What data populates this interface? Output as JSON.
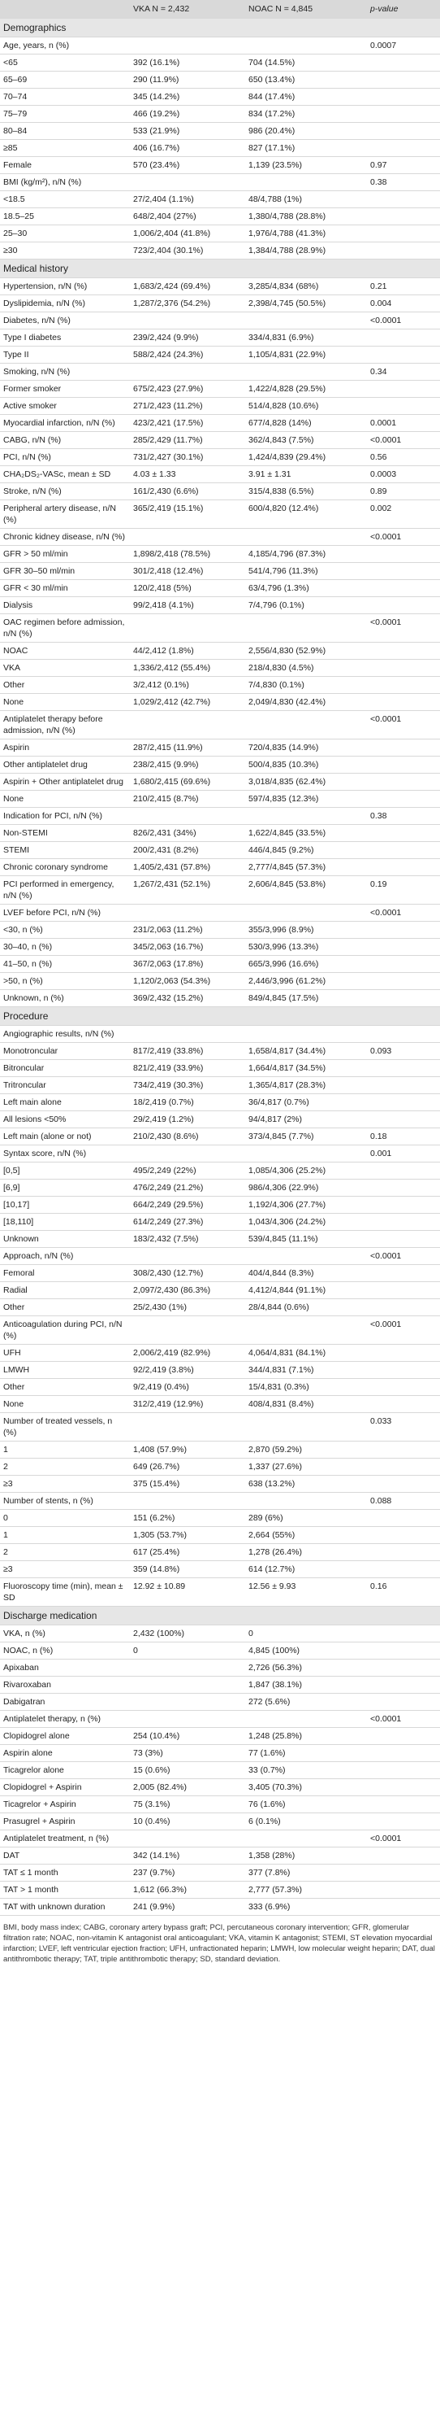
{
  "table": {
    "header": [
      null,
      "VKA N = 2,432",
      "NOAC N = 4,845",
      "p-value"
    ],
    "sections": [
      {
        "title": "Demographics",
        "rows": [
          [
            "Age, years, n (%)",
            null,
            null,
            "0.0007"
          ],
          [
            "<65",
            "392 (16.1%)",
            "704 (14.5%)",
            null
          ],
          [
            "65–69",
            "290 (11.9%)",
            "650 (13.4%)",
            null
          ],
          [
            "70–74",
            "345 (14.2%)",
            "844 (17.4%)",
            null
          ],
          [
            "75–79",
            "466 (19.2%)",
            "834 (17.2%)",
            null
          ],
          [
            "80–84",
            "533 (21.9%)",
            "986 (20.4%)",
            null
          ],
          [
            "≥85",
            "406 (16.7%)",
            "827 (17.1%)",
            null
          ],
          [
            "Female",
            "570 (23.4%)",
            "1,139 (23.5%)",
            "0.97"
          ],
          [
            "BMI (kg/m²), n/N (%)",
            null,
            null,
            "0.38"
          ],
          [
            "<18.5",
            "27/2,404 (1.1%)",
            "48/4,788 (1%)",
            null
          ],
          [
            "18.5–25",
            "648/2,404 (27%)",
            "1,380/4,788 (28.8%)",
            null
          ],
          [
            "25–30",
            "1,006/2,404 (41.8%)",
            "1,976/4,788 (41.3%)",
            null
          ],
          [
            "≥30",
            "723/2,404 (30.1%)",
            "1,384/4,788 (28.9%)",
            null
          ]
        ]
      },
      {
        "title": "Medical history",
        "rows": [
          [
            "Hypertension, n/N (%)",
            "1,683/2,424 (69.4%)",
            "3,285/4,834 (68%)",
            "0.21"
          ],
          [
            "Dyslipidemia, n/N (%)",
            "1,287/2,376 (54.2%)",
            "2,398/4,745 (50.5%)",
            "0.004"
          ],
          [
            "Diabetes, n/N (%)",
            null,
            null,
            "<0.0001"
          ],
          [
            "Type I diabetes",
            "239/2,424 (9.9%)",
            "334/4,831 (6.9%)",
            null
          ],
          [
            "Type II",
            "588/2,424 (24.3%)",
            "1,105/4,831 (22.9%)",
            null
          ],
          [
            "Smoking, n/N (%)",
            null,
            null,
            "0.34"
          ],
          [
            "Former smoker",
            "675/2,423 (27.9%)",
            "1,422/4,828 (29.5%)",
            null
          ],
          [
            "Active smoker",
            "271/2,423 (11.2%)",
            "514/4,828 (10.6%)",
            null
          ],
          [
            "Myocardial infarction, n/N (%)",
            "423/2,421 (17.5%)",
            "677/4,828 (14%)",
            "0.0001"
          ],
          [
            "CABG, n/N (%)",
            "285/2,429 (11.7%)",
            "362/4,843 (7.5%)",
            "<0.0001"
          ],
          [
            "PCI, n/N (%)",
            "731/2,427 (30.1%)",
            "1,424/4,839 (29.4%)",
            "0.56"
          ],
          [
            "CHA₂DS₂-VASc, mean ± SD",
            "4.03 ± 1.33",
            "3.91 ± 1.31",
            "0.0003"
          ],
          [
            "Stroke, n/N (%)",
            "161/2,430 (6.6%)",
            "315/4,838 (6.5%)",
            "0.89"
          ],
          [
            "Peripheral artery disease, n/N (%)",
            "365/2,419 (15.1%)",
            "600/4,820 (12.4%)",
            "0.002"
          ],
          [
            "Chronic kidney disease, n/N (%)",
            null,
            null,
            "<0.0001"
          ],
          [
            "GFR > 50 ml/min",
            "1,898/2,418 (78.5%)",
            "4,185/4,796 (87.3%)",
            null
          ],
          [
            "GFR 30–50 ml/min",
            "301/2,418 (12.4%)",
            "541/4,796 (11.3%)",
            null
          ],
          [
            "GFR < 30 ml/min",
            "120/2,418 (5%)",
            "63/4,796 (1.3%)",
            null
          ],
          [
            "Dialysis",
            "99/2,418 (4.1%)",
            "7/4,796 (0.1%)",
            null
          ],
          [
            "OAC regimen before admission, n/N (%)",
            null,
            null,
            "<0.0001"
          ],
          [
            "NOAC",
            "44/2,412 (1.8%)",
            "2,556/4,830 (52.9%)",
            null
          ],
          [
            "VKA",
            "1,336/2,412 (55.4%)",
            "218/4,830 (4.5%)",
            null
          ],
          [
            "Other",
            "3/2,412 (0.1%)",
            "7/4,830 (0.1%)",
            null
          ],
          [
            "None",
            "1,029/2,412 (42.7%)",
            "2,049/4,830 (42.4%)",
            null
          ],
          [
            "Antiplatelet therapy before admission, n/N (%)",
            null,
            null,
            "<0.0001"
          ],
          [
            "Aspirin",
            "287/2,415 (11.9%)",
            "720/4,835 (14.9%)",
            null
          ],
          [
            "Other antiplatelet drug",
            "238/2,415 (9.9%)",
            "500/4,835 (10.3%)",
            null
          ],
          [
            "Aspirin + Other antiplatelet drug",
            "1,680/2,415 (69.6%)",
            "3,018/4,835 (62.4%)",
            null
          ],
          [
            "None",
            "210/2,415 (8.7%)",
            "597/4,835 (12.3%)",
            null
          ],
          [
            "Indication for PCI, n/N (%)",
            null,
            null,
            "0.38"
          ],
          [
            "Non-STEMI",
            "826/2,431 (34%)",
            "1,622/4,845 (33.5%)",
            null
          ],
          [
            "STEMI",
            "200/2,431 (8.2%)",
            "446/4,845 (9.2%)",
            null
          ],
          [
            "Chronic coronary syndrome",
            "1,405/2,431 (57.8%)",
            "2,777/4,845 (57.3%)",
            null
          ],
          [
            "PCI performed in emergency, n/N (%)",
            "1,267/2,431 (52.1%)",
            "2,606/4,845 (53.8%)",
            "0.19"
          ],
          [
            "LVEF before PCI, n/N (%)",
            null,
            null,
            "<0.0001"
          ],
          [
            "<30, n (%)",
            "231/2,063 (11.2%)",
            "355/3,996 (8.9%)",
            null
          ],
          [
            "30–40, n (%)",
            "345/2,063 (16.7%)",
            "530/3,996 (13.3%)",
            null
          ],
          [
            "41–50, n (%)",
            "367/2,063 (17.8%)",
            "665/3,996 (16.6%)",
            null
          ],
          [
            ">50, n (%)",
            "1,120/2,063 (54.3%)",
            "2,446/3,996 (61.2%)",
            null
          ],
          [
            "Unknown, n (%)",
            "369/2,432 (15.2%)",
            "849/4,845 (17.5%)",
            null
          ]
        ]
      },
      {
        "title": "Procedure",
        "rows": [
          [
            "Angiographic results, n/N (%)",
            null,
            null,
            null
          ],
          [
            "Monotroncular",
            "817/2,419 (33.8%)",
            "1,658/4,817 (34.4%)",
            "0.093"
          ],
          [
            "Bitroncular",
            "821/2,419 (33.9%)",
            "1,664/4,817 (34.5%)",
            null
          ],
          [
            "Tritroncular",
            "734/2,419 (30.3%)",
            "1,365/4,817 (28.3%)",
            null
          ],
          [
            "Left main alone",
            "18/2,419 (0.7%)",
            "36/4,817 (0.7%)",
            null
          ],
          [
            "All lesions <50%",
            "29/2,419 (1.2%)",
            "94/4,817 (2%)",
            null
          ],
          [
            "Left main (alone or not)",
            "210/2,430 (8.6%)",
            "373/4,845 (7.7%)",
            "0.18"
          ],
          [
            "Syntax score, n/N (%)",
            null,
            null,
            "0.001"
          ],
          [
            "[0,5]",
            "495/2,249 (22%)",
            "1,085/4,306 (25.2%)",
            null
          ],
          [
            "[6,9]",
            "476/2,249 (21.2%)",
            "986/4,306 (22.9%)",
            null
          ],
          [
            "[10,17]",
            "664/2,249 (29.5%)",
            "1,192/4,306 (27.7%)",
            null
          ],
          [
            "[18,110]",
            "614/2,249 (27.3%)",
            "1,043/4,306 (24.2%)",
            null
          ],
          [
            "Unknown",
            "183/2,432 (7.5%)",
            "539/4,845 (11.1%)",
            null
          ],
          [
            "Approach, n/N (%)",
            null,
            null,
            "<0.0001"
          ],
          [
            "Femoral",
            "308/2,430 (12.7%)",
            "404/4,844 (8.3%)",
            null
          ],
          [
            "Radial",
            "2,097/2,430 (86.3%)",
            "4,412/4,844 (91.1%)",
            null
          ],
          [
            "Other",
            "25/2,430 (1%)",
            "28/4,844 (0.6%)",
            null
          ],
          [
            "Anticoagulation during PCI, n/N (%)",
            null,
            null,
            "<0.0001"
          ],
          [
            "UFH",
            "2,006/2,419 (82.9%)",
            "4,064/4,831 (84.1%)",
            null
          ],
          [
            "LMWH",
            "92/2,419 (3.8%)",
            "344/4,831 (7.1%)",
            null
          ],
          [
            "Other",
            "9/2,419 (0.4%)",
            "15/4,831 (0.3%)",
            null
          ],
          [
            "None",
            "312/2,419 (12.9%)",
            "408/4,831 (8.4%)",
            null
          ],
          [
            "Number of treated vessels, n (%)",
            null,
            null,
            "0.033"
          ],
          [
            "1",
            "1,408 (57.9%)",
            "2,870 (59.2%)",
            null
          ],
          [
            "2",
            "649 (26.7%)",
            "1,337 (27.6%)",
            null
          ],
          [
            "≥3",
            "375 (15.4%)",
            "638 (13.2%)",
            null
          ],
          [
            "Number of stents, n (%)",
            null,
            null,
            "0.088"
          ],
          [
            "0",
            "151 (6.2%)",
            "289 (6%)",
            null
          ],
          [
            "1",
            "1,305 (53.7%)",
            "2,664 (55%)",
            null
          ],
          [
            "2",
            "617 (25.4%)",
            "1,278 (26.4%)",
            null
          ],
          [
            "≥3",
            "359 (14.8%)",
            "614 (12.7%)",
            null
          ],
          [
            "Fluoroscopy time (min), mean ± SD",
            "12.92 ± 10.89",
            "12.56 ± 9.93",
            "0.16"
          ]
        ]
      },
      {
        "title": "Discharge medication",
        "rows": [
          [
            "VKA, n (%)",
            "2,432 (100%)",
            "0",
            null
          ],
          [
            "NOAC, n (%)",
            "0",
            "4,845 (100%)",
            null
          ],
          [
            "Apixaban",
            null,
            "2,726 (56.3%)",
            null
          ],
          [
            "Rivaroxaban",
            null,
            "1,847 (38.1%)",
            null
          ],
          [
            "Dabigatran",
            null,
            "272 (5.6%)",
            null
          ],
          [
            "Antiplatelet therapy, n (%)",
            null,
            null,
            "<0.0001"
          ],
          [
            "Clopidogrel alone",
            "254 (10.4%)",
            "1,248 (25.8%)",
            null
          ],
          [
            "Aspirin alone",
            "73 (3%)",
            "77 (1.6%)",
            null
          ],
          [
            "Ticagrelor alone",
            "15 (0.6%)",
            "33 (0.7%)",
            null
          ],
          [
            "Clopidogrel + Aspirin",
            "2,005 (82.4%)",
            "3,405 (70.3%)",
            null
          ],
          [
            "Ticagrelor + Aspirin",
            "75 (3.1%)",
            "76 (1.6%)",
            null
          ],
          [
            "Prasugrel + Aspirin",
            "10 (0.4%)",
            "6 (0.1%)",
            null
          ],
          [
            "Antiplatelet treatment, n (%)",
            null,
            null,
            "<0.0001"
          ],
          [
            "DAT",
            "342 (14.1%)",
            "1,358 (28%)",
            null
          ],
          [
            "TAT ≤ 1 month",
            "237 (9.7%)",
            "377 (7.8%)",
            null
          ],
          [
            "TAT > 1 month",
            "1,612 (66.3%)",
            "2,777 (57.3%)",
            null
          ],
          [
            "TAT with unknown duration",
            "241 (9.9%)",
            "333 (6.9%)",
            null
          ]
        ]
      }
    ]
  },
  "footnote": "BMI, body mass index; CABG, coronary artery bypass graft; PCI, percutaneous coronary intervention; GFR, glomerular filtration rate; NOAC, non-vitamin K antagonist oral anticoagulant; VKA, vitamin K antagonist; STEMI, ST elevation myocardial infarction; LVEF, left ventricular ejection fraction; UFH, unfractionated heparin; LMWH, low molecular weight heparin; DAT, dual antithrombotic therapy; TAT, triple antithrombotic therapy; SD, standard deviation."
}
